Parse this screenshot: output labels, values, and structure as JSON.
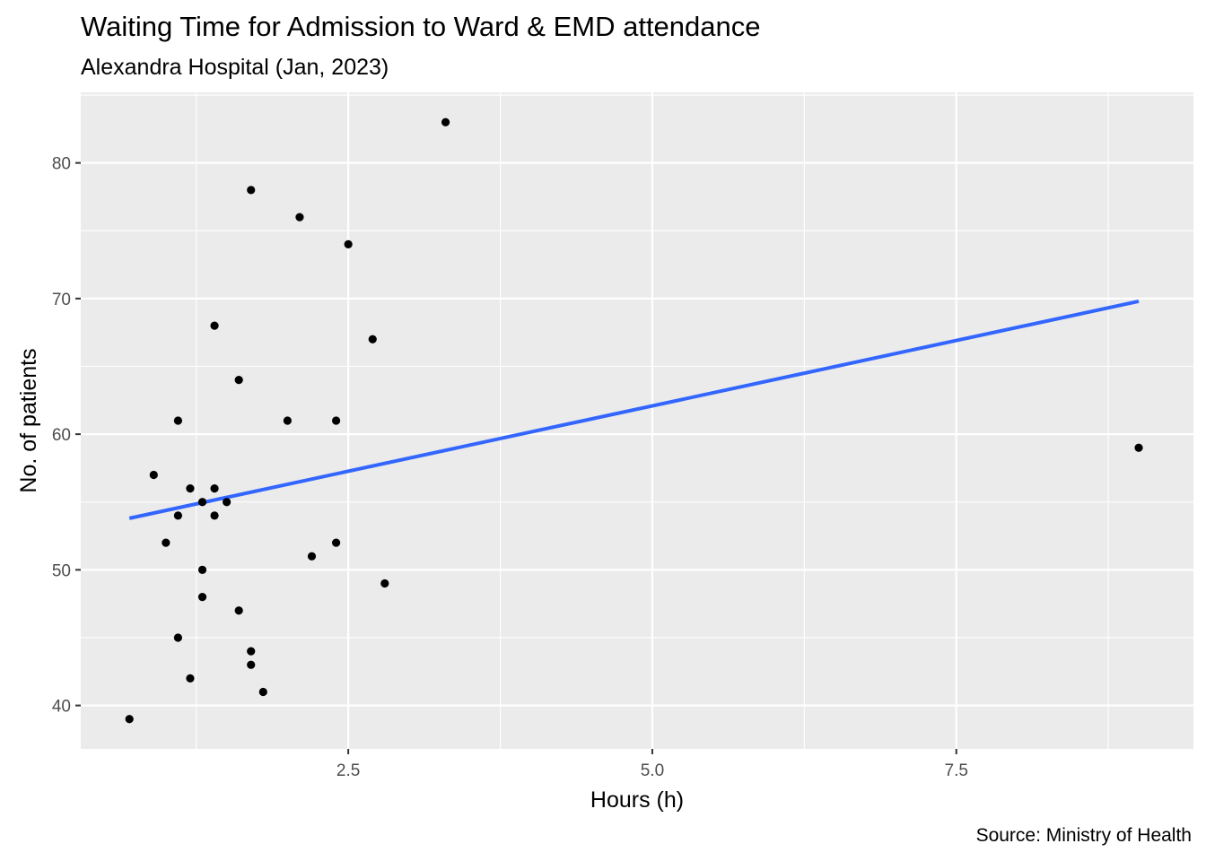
{
  "chart_data": {
    "type": "scatter",
    "title": "Waiting Time for Admission to Ward & EMD attendance",
    "subtitle": "Alexandra Hospital (Jan, 2023)",
    "caption": "Source: Ministry of Health",
    "xlabel": "Hours (h)",
    "ylabel": "No. of patients",
    "xlim": [
      0.3,
      9.45
    ],
    "ylim": [
      36.8,
      85.2
    ],
    "x_ticks": [
      2.5,
      5.0,
      7.5
    ],
    "x_tick_labels": [
      "2.5",
      "5.0",
      "7.5"
    ],
    "y_ticks": [
      40,
      50,
      60,
      70,
      80
    ],
    "y_tick_labels": [
      "40",
      "50",
      "60",
      "70",
      "80"
    ],
    "grid": true,
    "points": [
      {
        "x": 0.7,
        "y": 39
      },
      {
        "x": 0.9,
        "y": 57
      },
      {
        "x": 1.0,
        "y": 52
      },
      {
        "x": 1.1,
        "y": 61
      },
      {
        "x": 1.1,
        "y": 54
      },
      {
        "x": 1.1,
        "y": 45
      },
      {
        "x": 1.2,
        "y": 56
      },
      {
        "x": 1.2,
        "y": 42
      },
      {
        "x": 1.3,
        "y": 55
      },
      {
        "x": 1.3,
        "y": 50
      },
      {
        "x": 1.3,
        "y": 48
      },
      {
        "x": 1.4,
        "y": 68
      },
      {
        "x": 1.4,
        "y": 56
      },
      {
        "x": 1.4,
        "y": 54
      },
      {
        "x": 1.5,
        "y": 55
      },
      {
        "x": 1.6,
        "y": 64
      },
      {
        "x": 1.6,
        "y": 47
      },
      {
        "x": 1.7,
        "y": 78
      },
      {
        "x": 1.7,
        "y": 44
      },
      {
        "x": 1.7,
        "y": 43
      },
      {
        "x": 1.8,
        "y": 41
      },
      {
        "x": 2.0,
        "y": 61
      },
      {
        "x": 2.1,
        "y": 76
      },
      {
        "x": 2.2,
        "y": 51
      },
      {
        "x": 2.4,
        "y": 61
      },
      {
        "x": 2.4,
        "y": 52
      },
      {
        "x": 2.5,
        "y": 74
      },
      {
        "x": 2.7,
        "y": 67
      },
      {
        "x": 2.8,
        "y": 49
      },
      {
        "x": 3.3,
        "y": 83
      },
      {
        "x": 9.0,
        "y": 59
      }
    ],
    "trend_line": {
      "type": "linear",
      "x": [
        0.7,
        9.0
      ],
      "y": [
        53.8,
        69.8
      ],
      "color": "#3366FF"
    },
    "colors": {
      "panel": "#EBEBEB",
      "grid": "#FFFFFF",
      "point": "#000000",
      "trend": "#3366FF"
    }
  }
}
